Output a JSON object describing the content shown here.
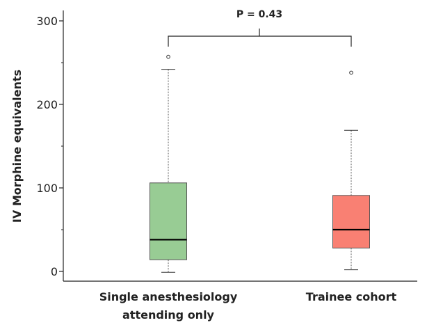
{
  "chart_data": {
    "type": "box",
    "ylabel": "IV Morphine equivalents",
    "ylim": [
      -10,
      310
    ],
    "yticks": [
      0,
      100,
      200,
      300
    ],
    "grid": false,
    "annotation": "P = 0.43",
    "groups": [
      {
        "label_lines": [
          "Single anesthesiology",
          "attending only"
        ],
        "min": -1,
        "q1": 14,
        "median": 38,
        "q3": 106,
        "max": 242,
        "outliers": [
          257
        ],
        "color": "#98cc94"
      },
      {
        "label_lines": [
          "Trainee cohort"
        ],
        "min": 2,
        "q1": 28,
        "median": 50,
        "q3": 91,
        "max": 169,
        "outliers": [
          238
        ],
        "color": "#f98073"
      }
    ]
  }
}
